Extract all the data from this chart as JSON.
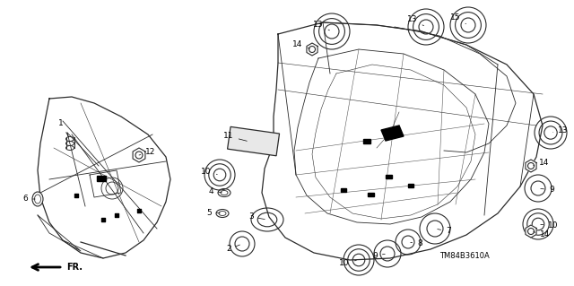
{
  "bg_color": "#ffffff",
  "fig_width": 6.4,
  "fig_height": 3.19,
  "dpi": 100,
  "watermark": "TM84B3610A",
  "label_fontsize": 6.5
}
